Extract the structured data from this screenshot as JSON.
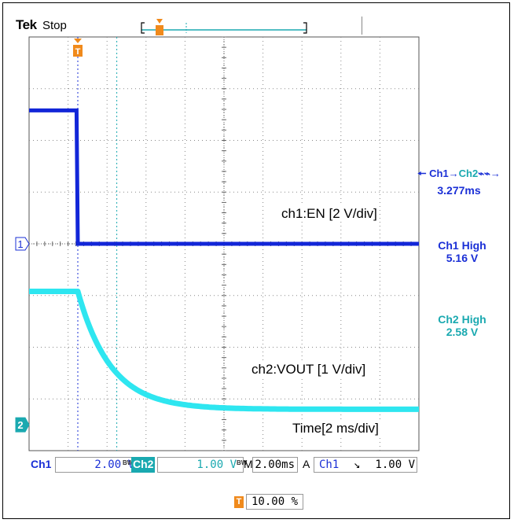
{
  "header": {
    "brand": "Tek",
    "state": "Stop"
  },
  "colors": {
    "ch1": "#1226d8",
    "ch2": "#2ee6f0",
    "trigger": "#f08a1c",
    "ch2_text": "#1aa9b0"
  },
  "markers": {
    "ch1": "1",
    "ch2": "2",
    "trigger": "T"
  },
  "measurements": {
    "delay_label_ch1": "Ch1",
    "delay_label_ch2": "Ch2",
    "delay_arrow": "→",
    "delay_value": "3.277ms",
    "ch1_high_label": "Ch1 High",
    "ch1_high_value": "5.16 V",
    "ch2_high_label": "Ch2 High",
    "ch2_high_value": "2.58 V"
  },
  "annotations": {
    "ch1": "ch1:EN [2 V/div]",
    "ch2": "ch2:VOUT [1 V/div]",
    "time": "Time[2 ms/div]"
  },
  "bottom_bar": {
    "ch1_label": "Ch1",
    "ch1_scale": "2.00 V",
    "ch2_label": "Ch2",
    "ch2_scale": "1.00 V",
    "bw_mark": "BW",
    "timebase_prefix": "M",
    "timebase": "2.00ms",
    "trigger_mode": "A",
    "trigger_source": "Ch1",
    "trigger_slope": "↘",
    "trigger_level": "1.00 V"
  },
  "trigger_position": "10.00 %",
  "chart_data": {
    "type": "line",
    "xlabel": "Time[2 ms/div]",
    "x_unit": "ms",
    "xlim": [
      -2,
      14
    ],
    "time_per_div_ms": 2,
    "grid": true,
    "series": [
      {
        "name": "ch1:EN",
        "volts_per_div": 2,
        "ylim_divs": [
          -1,
          4
        ],
        "points": [
          [
            -2,
            5.16
          ],
          [
            -0.05,
            5.16
          ],
          [
            0,
            0
          ],
          [
            14,
            0
          ]
        ]
      },
      {
        "name": "ch2:VOUT",
        "volts_per_div": 1,
        "ylim_divs": [
          0,
          5
        ],
        "points": [
          [
            -2,
            2.58
          ],
          [
            0,
            2.58
          ],
          [
            0.5,
            1.9
          ],
          [
            1,
            1.45
          ],
          [
            1.5,
            1.1
          ],
          [
            2,
            0.85
          ],
          [
            3,
            0.55
          ],
          [
            4,
            0.42
          ],
          [
            5,
            0.36
          ],
          [
            6,
            0.33
          ],
          [
            8,
            0.31
          ],
          [
            10,
            0.3
          ],
          [
            14,
            0.3
          ]
        ]
      }
    ]
  }
}
